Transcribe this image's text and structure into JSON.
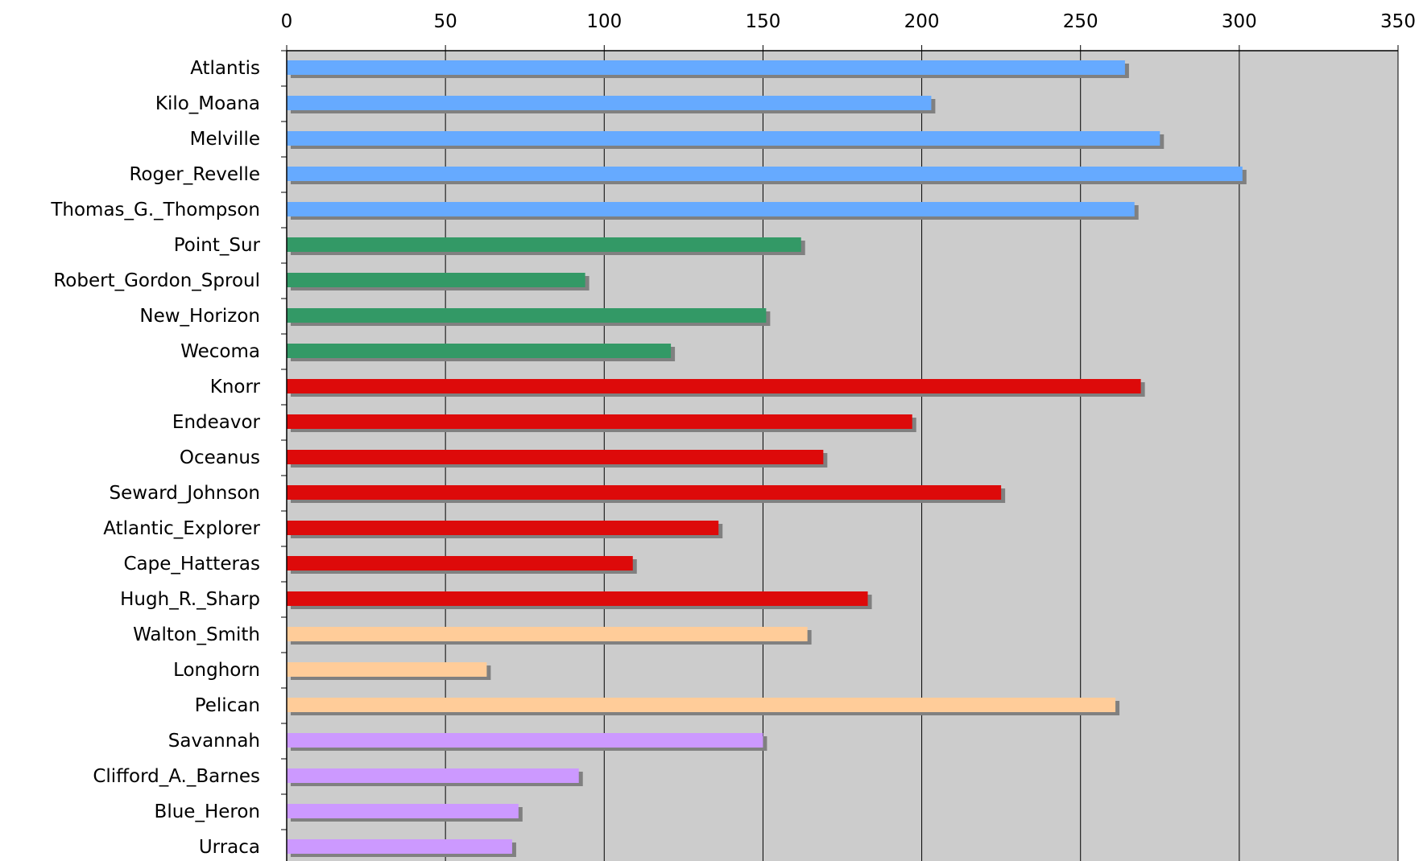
{
  "chart_data": {
    "type": "bar",
    "orientation": "horizontal",
    "title": "",
    "xlabel": "",
    "ylabel": "",
    "xlim": [
      0,
      350
    ],
    "x_ticks": [
      "0",
      "50",
      "100",
      "150",
      "200",
      "250",
      "300",
      "350"
    ],
    "grid": true,
    "legend": "none",
    "plot_background": "#cccccc",
    "shadow_color": "#808080",
    "categories": [
      "Atlantis",
      "Kilo_Moana",
      "Melville",
      "Roger_Revelle",
      "Thomas_G._Thompson",
      "Point_Sur",
      "Robert_Gordon_Sproul",
      "New_Horizon",
      "Wecoma",
      "Knorr",
      "Endeavor",
      "Oceanus",
      "Seward_Johnson",
      "Atlantic_Explorer",
      "Cape_Hatteras",
      "Hugh_R._Sharp",
      "Walton_Smith",
      "Longhorn",
      "Pelican",
      "Savannah",
      "Clifford_A._Barnes",
      "Blue_Heron",
      "Urraca"
    ],
    "values": [
      264,
      203,
      275,
      301,
      267,
      162,
      94,
      151,
      121,
      269,
      197,
      169,
      225,
      136,
      109,
      183,
      164,
      63,
      261,
      150,
      92,
      73,
      71
    ],
    "colors": [
      "#66aaff",
      "#66aaff",
      "#66aaff",
      "#66aaff",
      "#66aaff",
      "#339966",
      "#339966",
      "#339966",
      "#339966",
      "#dd0a0a",
      "#dd0a0a",
      "#dd0a0a",
      "#dd0a0a",
      "#dd0a0a",
      "#dd0a0a",
      "#dd0a0a",
      "#ffcc99",
      "#ffcc99",
      "#ffcc99",
      "#cc99ff",
      "#cc99ff",
      "#cc99ff",
      "#cc99ff"
    ]
  }
}
